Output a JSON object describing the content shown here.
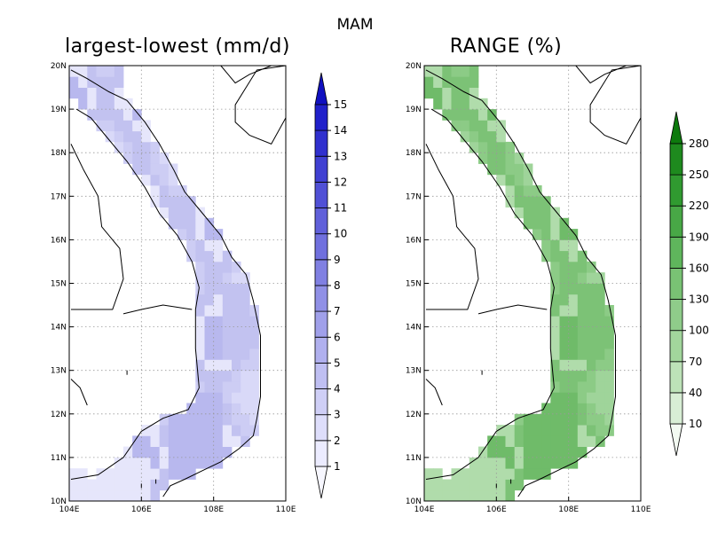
{
  "figure": {
    "suptitle": "MAM"
  },
  "panels": [
    {
      "title": "largest-lowest (mm/d)",
      "colorbar": {
        "levels": [
          "1",
          "2",
          "3",
          "4",
          "5",
          "6",
          "7",
          "8",
          "9",
          "10",
          "11",
          "12",
          "13",
          "14",
          "15"
        ],
        "colors": [
          "#f7f7ff",
          "#ececff",
          "#dedefb",
          "#cfcff6",
          "#bfbff2",
          "#b0b0ee",
          "#a0a0ea",
          "#9090e6",
          "#8080e2",
          "#7070de",
          "#6060da",
          "#5050d6",
          "#4040d2",
          "#3030ce",
          "#2020ca",
          "#1010c0"
        ],
        "extend": "both"
      },
      "fill_colors": [
        "#d9d9f8",
        "#cdcdf4",
        "#c2c2f0",
        "#e6e6fb",
        "#b8b8ee"
      ]
    },
    {
      "title": "RANGE (%)",
      "colorbar": {
        "levels": [
          "10",
          "40",
          "70",
          "100",
          "130",
          "160",
          "190",
          "220",
          "250",
          "280"
        ],
        "colors": [
          "#f3faf2",
          "#d8eed5",
          "#bde2b8",
          "#a2d69c",
          "#8fcc8a",
          "#79c274",
          "#5fb65c",
          "#48a846",
          "#309a30",
          "#1e8a1e",
          "#0d7a0d"
        ],
        "extend": "both"
      },
      "fill_colors": [
        "#9fd49a",
        "#8ccb86",
        "#7cc276",
        "#b0dcab",
        "#6fbb69"
      ]
    }
  ],
  "map": {
    "lon_ticks": [
      "104E",
      "106E",
      "108E",
      "110E"
    ],
    "lat_ticks": [
      "10N",
      "11N",
      "12N",
      "13N",
      "14N",
      "15N",
      "16N",
      "17N",
      "18N",
      "19N",
      "20N"
    ],
    "region": "Vietnam",
    "lon_range": [
      104,
      110
    ],
    "lat_range": [
      10,
      20
    ]
  }
}
